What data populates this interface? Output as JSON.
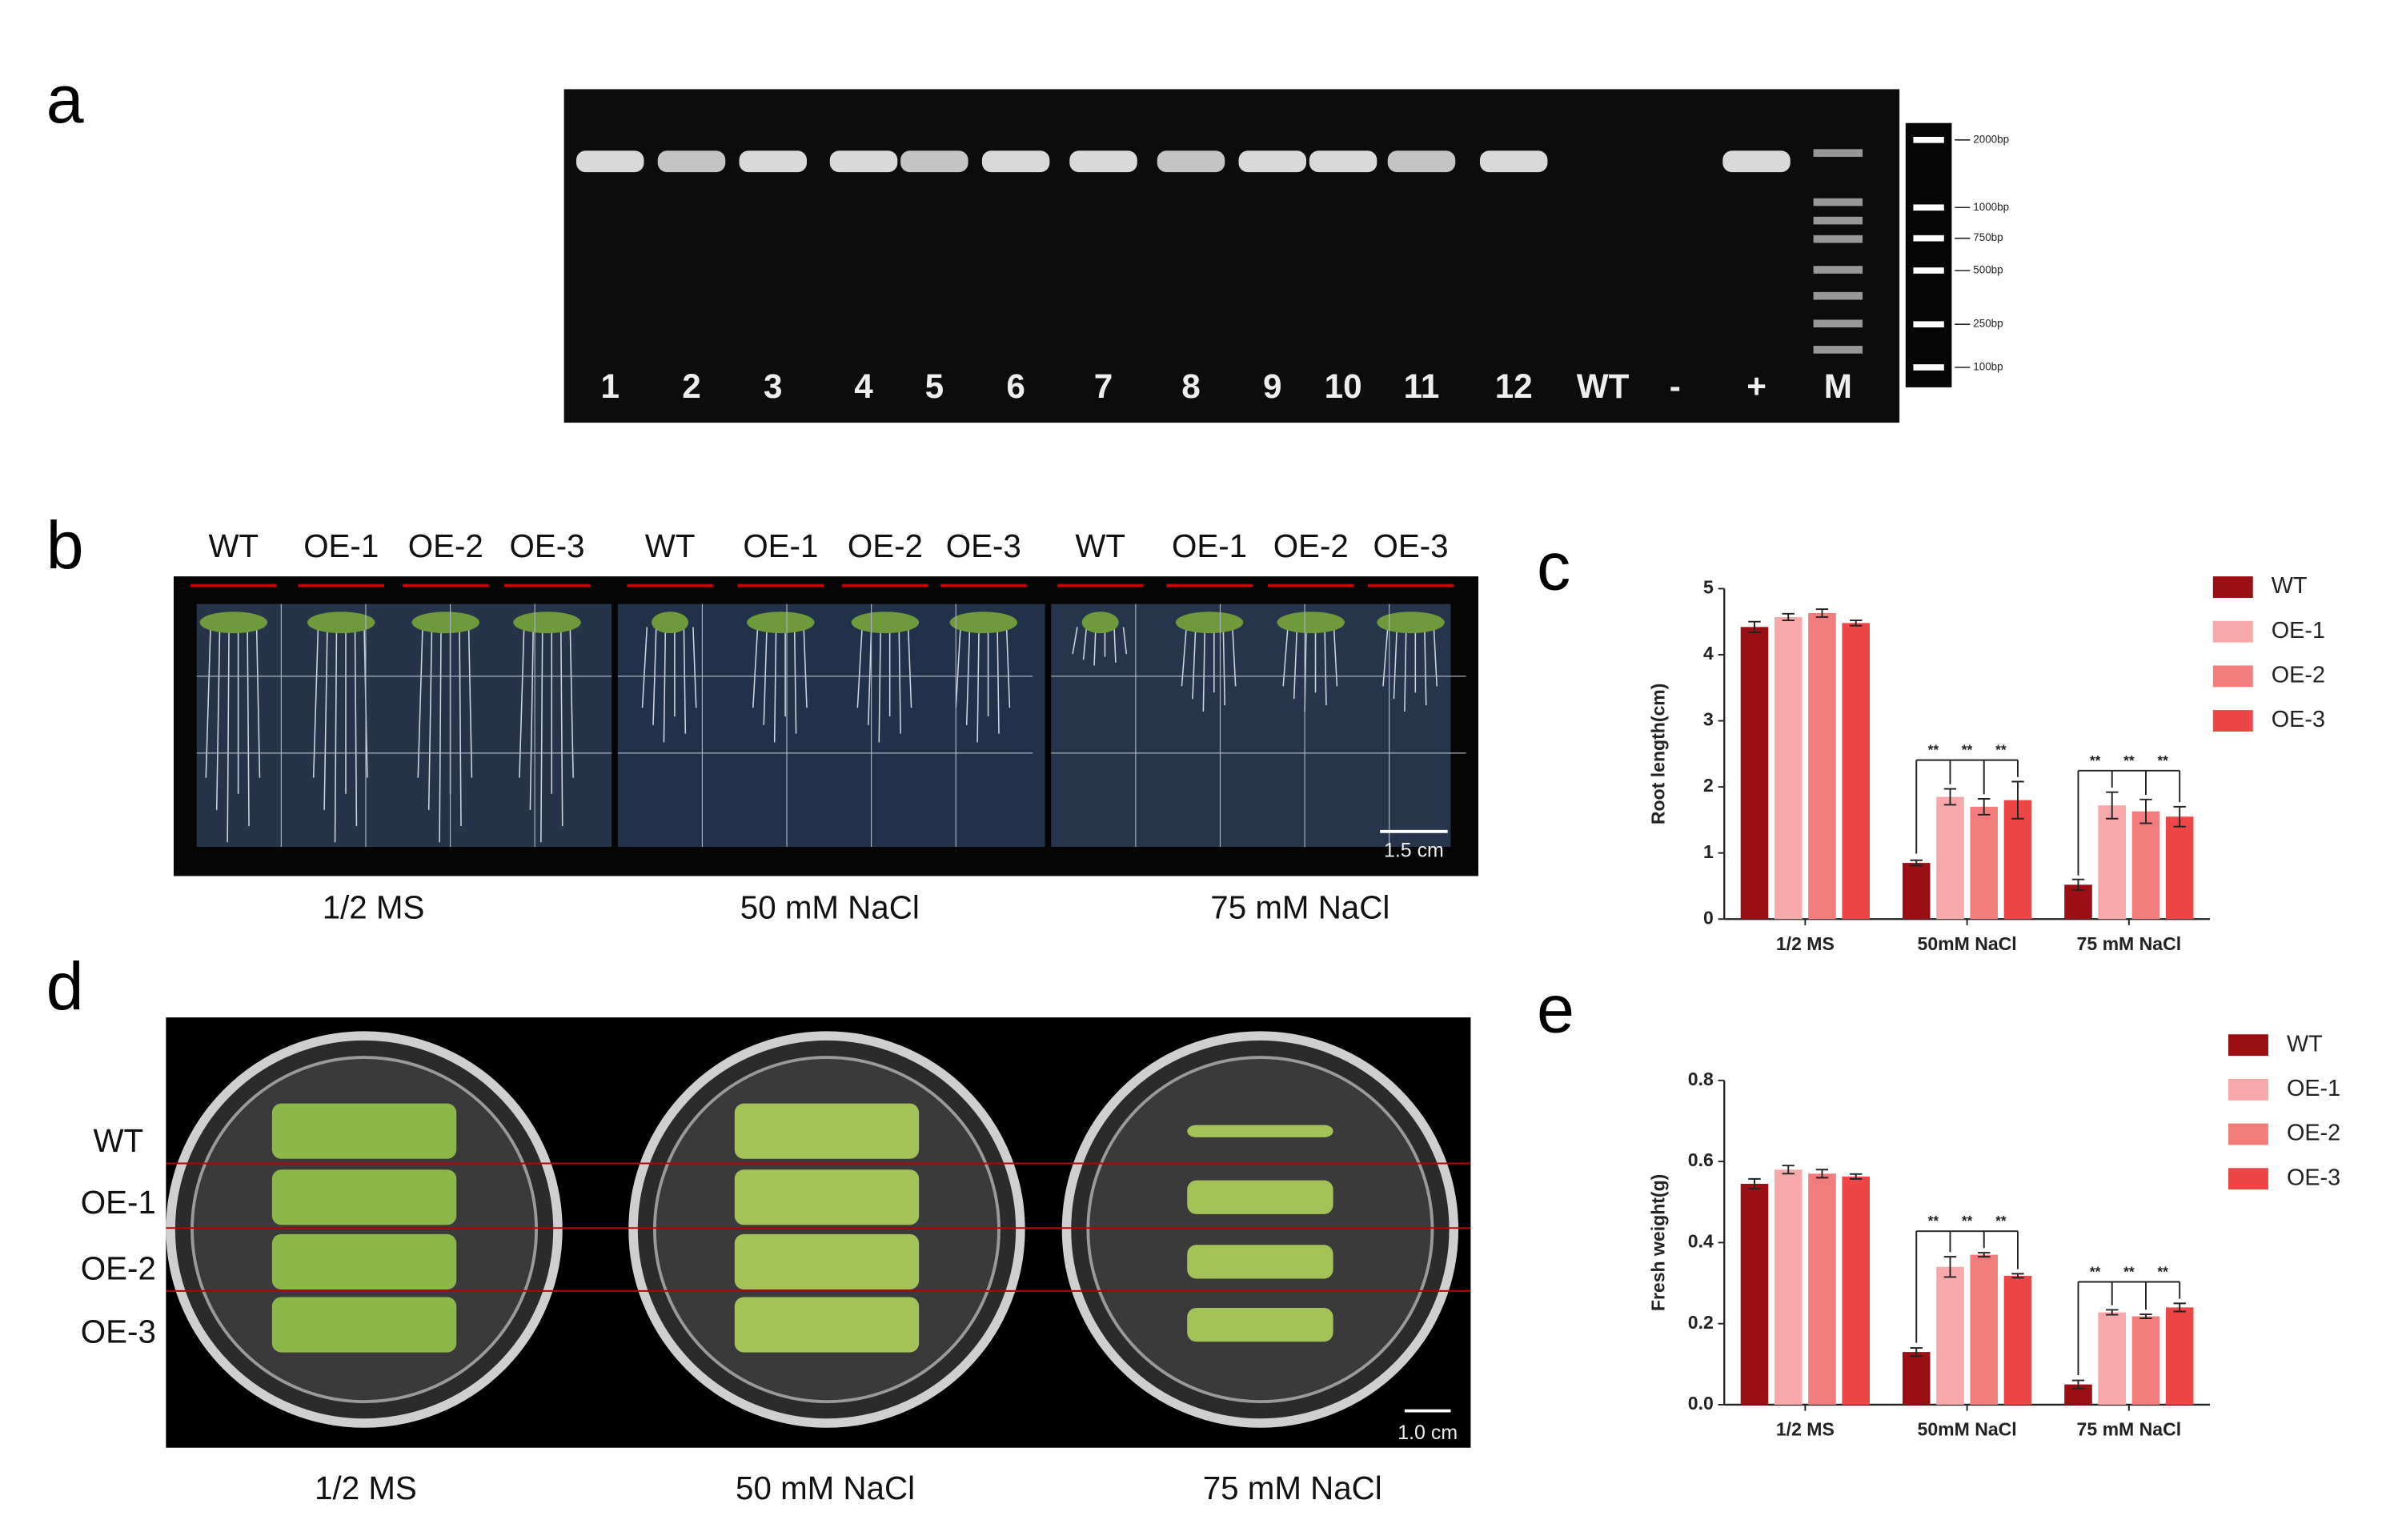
{
  "panel_labels": [
    "a",
    "b",
    "c",
    "d",
    "e"
  ],
  "gel": {
    "lane_labels": [
      "1",
      "2",
      "3",
      "4",
      "5",
      "6",
      "7",
      "8",
      "9",
      "10",
      "11",
      "12",
      "WT",
      "-",
      "+",
      "M"
    ],
    "ladder_labels": [
      "2000bp",
      "1000bp",
      "750bp",
      "500bp",
      "250bp",
      "100bp"
    ]
  },
  "root_photo": {
    "genotype_labels": [
      "WT",
      "OE-1",
      "OE-2",
      "OE-3"
    ],
    "conditions": [
      "1/2 MS",
      "50 mM NaCl",
      "75 mM NaCl"
    ],
    "scale_bar": "1.5 cm"
  },
  "plate_photo": {
    "row_labels": [
      "WT",
      "OE-1",
      "OE-2",
      "OE-3"
    ],
    "conditions": [
      "1/2 MS",
      "50 mM NaCl",
      "75 mM NaCl"
    ],
    "scale_bar": "1.0 cm"
  },
  "chart_data": [
    {
      "type": "bar",
      "y_label": "Root length(cm)",
      "categories": [
        "1/2 MS",
        "50mM NaCl",
        "75 mM  NaCl"
      ],
      "ylim": [
        0,
        5
      ],
      "yticks": [
        0,
        1,
        2,
        3,
        4,
        5
      ],
      "series": [
        {
          "name": "WT",
          "color": "#9b0f14",
          "values": [
            4.42,
            0.85,
            0.52
          ],
          "errors": [
            0.08,
            0.04,
            0.08
          ]
        },
        {
          "name": "OE-1",
          "color": "#f7a8a8",
          "values": [
            4.57,
            1.85,
            1.72
          ],
          "errors": [
            0.05,
            0.12,
            0.2
          ]
        },
        {
          "name": "OE-2",
          "color": "#f27c7c",
          "values": [
            4.63,
            1.7,
            1.63
          ],
          "errors": [
            0.06,
            0.12,
            0.18
          ]
        },
        {
          "name": "OE-3",
          "color": "#ee4646",
          "values": [
            4.48,
            1.8,
            1.55
          ],
          "errors": [
            0.04,
            0.28,
            0.15
          ]
        }
      ],
      "significance": [
        "**",
        "**",
        "**",
        "**",
        "**",
        "**"
      ]
    },
    {
      "type": "bar",
      "y_label": "Fresh weight(g)",
      "categories": [
        "1/2 MS",
        "50mM NaCl",
        "75 mM  NaCl"
      ],
      "ylim": [
        0,
        0.8
      ],
      "yticks": [
        {
          "value": 0,
          "label": "0.0"
        },
        0.2,
        0.4,
        0.6,
        0.8
      ],
      "series": [
        {
          "name": "WT",
          "color": "#9b0f14",
          "values": [
            0.545,
            0.13,
            0.05
          ],
          "errors": [
            0.012,
            0.01,
            0.01
          ]
        },
        {
          "name": "OE-1",
          "color": "#f7a8a8",
          "values": [
            0.58,
            0.34,
            0.228
          ],
          "errors": [
            0.01,
            0.025,
            0.006
          ]
        },
        {
          "name": "OE-2",
          "color": "#f27c7c",
          "values": [
            0.57,
            0.37,
            0.218
          ],
          "errors": [
            0.01,
            0.005,
            0.005
          ]
        },
        {
          "name": "OE-3",
          "color": "#ee4646",
          "values": [
            0.563,
            0.318,
            0.24
          ],
          "errors": [
            0.006,
            0.005,
            0.01
          ]
        }
      ],
      "significance": [
        "**",
        "**",
        "**",
        "**",
        "**",
        "**"
      ]
    }
  ]
}
